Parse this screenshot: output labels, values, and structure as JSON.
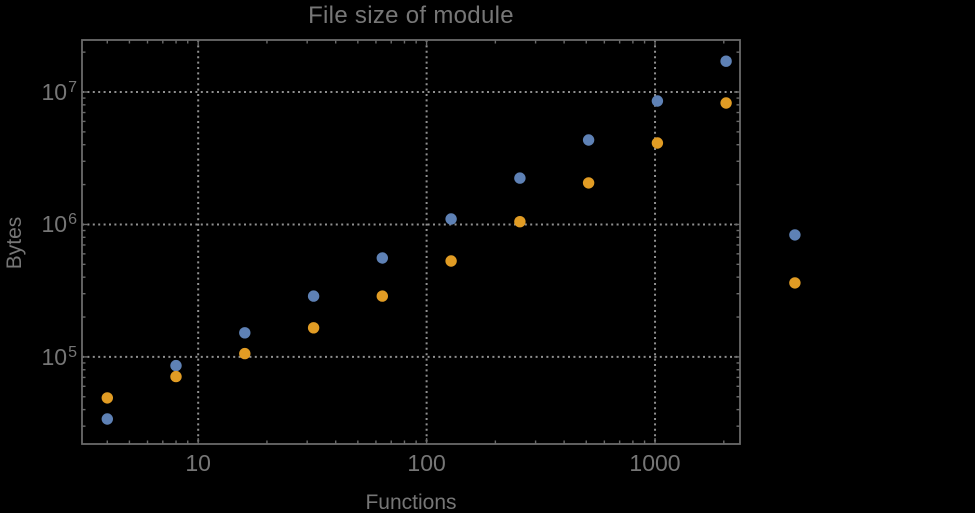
{
  "title": "File size of module",
  "axes": {
    "x": {
      "label": "Functions",
      "scale": "log",
      "ticks": [
        {
          "value": 10,
          "label": "10"
        },
        {
          "value": 100,
          "label": "100"
        },
        {
          "value": 1000,
          "label": "1000"
        }
      ]
    },
    "y": {
      "label": "Bytes",
      "scale": "log",
      "ticks": [
        {
          "value": 100000,
          "base": "10",
          "exp": "5"
        },
        {
          "value": 1000000,
          "base": "10",
          "exp": "6"
        },
        {
          "value": 10000000,
          "base": "10",
          "exp": "7"
        }
      ]
    }
  },
  "chart_data": {
    "type": "scatter",
    "title": "File size of module",
    "xlabel": "Functions",
    "ylabel": "Bytes",
    "x_scale": "log",
    "y_scale": "log",
    "xlim": [
      3.1,
      2355
    ],
    "ylim": [
      22000,
      24700000
    ],
    "grid": "dotted-at-decades",
    "legend": "none",
    "x": [
      4,
      8,
      16,
      32,
      64,
      128,
      256,
      512,
      1024,
      2048,
      4096
    ],
    "series": [
      {
        "name": "series-blue",
        "color": "#5E81B5",
        "values": [
          34000,
          86000,
          152000,
          288000,
          558000,
          1100000,
          2240000,
          4340000,
          8550000,
          17100000,
          834000
        ]
      },
      {
        "name": "series-orange",
        "color": "#E19C24",
        "values": [
          49000,
          71000,
          106000,
          166000,
          288000,
          530000,
          1050000,
          2060000,
          4120000,
          8260000,
          362000
        ]
      }
    ]
  },
  "colors": {
    "background": "#000000",
    "frame": "#6a6a6a",
    "grid": "#8f8f8f",
    "text": "#767676"
  }
}
